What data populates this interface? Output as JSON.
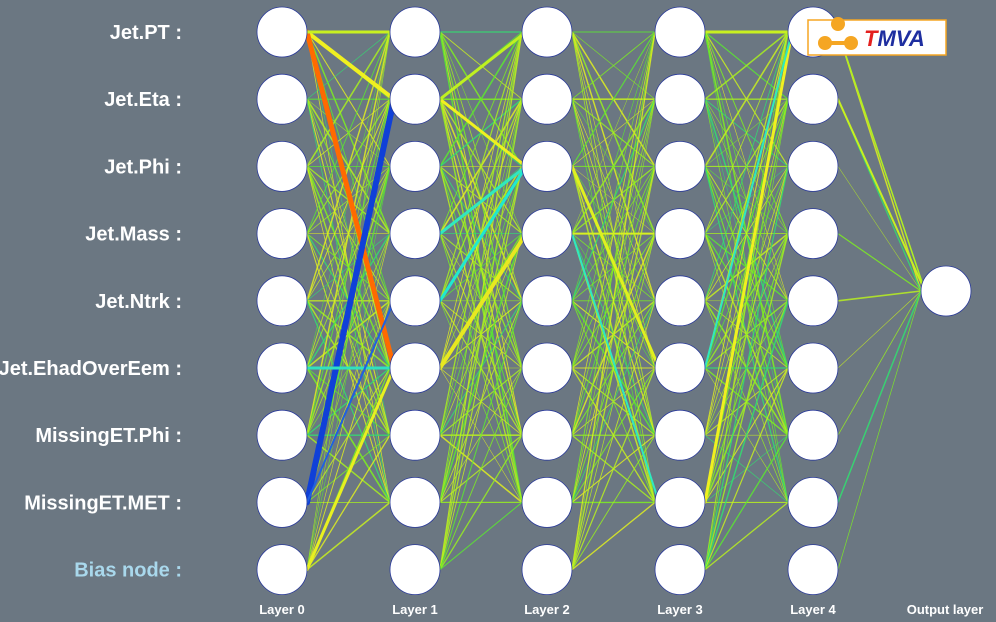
{
  "inputs": [
    {
      "label": "Jet.PT :",
      "bias": false
    },
    {
      "label": "Jet.Eta :",
      "bias": false
    },
    {
      "label": "Jet.Phi :",
      "bias": false
    },
    {
      "label": "Jet.Mass :",
      "bias": false
    },
    {
      "label": "Jet.Ntrk :",
      "bias": false
    },
    {
      "label": "Jet.EhadOverEem :",
      "bias": false
    },
    {
      "label": "MissingET.Phi :",
      "bias": false
    },
    {
      "label": "MissingET.MET :",
      "bias": false
    },
    {
      "label": "Bias node :",
      "bias": true
    }
  ],
  "layers": [
    {
      "label": "Layer 0",
      "nodes": 9
    },
    {
      "label": "Layer 1",
      "nodes": 9
    },
    {
      "label": "Layer 2",
      "nodes": 9
    },
    {
      "label": "Layer 3",
      "nodes": 9
    },
    {
      "label": "Layer 4",
      "nodes": 9
    },
    {
      "label": "Output layer",
      "nodes": 1
    }
  ],
  "logo": {
    "t": "T",
    "rest": "MVA",
    "t_color": "#e4201e",
    "rest_color": "#1e2ea0",
    "accent": "#f5a623"
  },
  "highlight_connections": [
    {
      "from": [
        0,
        0
      ],
      "to": [
        1,
        1
      ],
      "color": "#f0f020",
      "weight": 4
    },
    {
      "from": [
        0,
        0
      ],
      "to": [
        1,
        5
      ],
      "color": "#ff6a00",
      "weight": 5
    },
    {
      "from": [
        0,
        7
      ],
      "to": [
        1,
        1
      ],
      "color": "#1040d8",
      "weight": 6
    },
    {
      "from": [
        0,
        5
      ],
      "to": [
        1,
        5
      ],
      "color": "#30e0c0",
      "weight": 3
    },
    {
      "from": [
        0,
        7
      ],
      "to": [
        1,
        4
      ],
      "color": "#2060e0",
      "weight": 2
    },
    {
      "from": [
        0,
        0
      ],
      "to": [
        1,
        0
      ],
      "color": "#c8f020",
      "weight": 3
    },
    {
      "from": [
        0,
        8
      ],
      "to": [
        1,
        5
      ],
      "color": "#e8f020",
      "weight": 3
    },
    {
      "from": [
        1,
        5
      ],
      "to": [
        2,
        3
      ],
      "color": "#e8e820",
      "weight": 4
    },
    {
      "from": [
        1,
        1
      ],
      "to": [
        2,
        2
      ],
      "color": "#f0f020",
      "weight": 3
    },
    {
      "from": [
        1,
        4
      ],
      "to": [
        2,
        2
      ],
      "color": "#20e8d0",
      "weight": 3
    },
    {
      "from": [
        1,
        3
      ],
      "to": [
        2,
        2
      ],
      "color": "#30e8c0",
      "weight": 3
    },
    {
      "from": [
        1,
        1
      ],
      "to": [
        2,
        0
      ],
      "color": "#c0f020",
      "weight": 3
    },
    {
      "from": [
        2,
        2
      ],
      "to": [
        3,
        5
      ],
      "color": "#e0f020",
      "weight": 3
    },
    {
      "from": [
        2,
        3
      ],
      "to": [
        3,
        7
      ],
      "color": "#30e8c0",
      "weight": 2
    },
    {
      "from": [
        2,
        3
      ],
      "to": [
        3,
        3
      ],
      "color": "#d8f020",
      "weight": 2
    },
    {
      "from": [
        3,
        7
      ],
      "to": [
        4,
        0
      ],
      "color": "#f0f020",
      "weight": 3
    },
    {
      "from": [
        3,
        5
      ],
      "to": [
        4,
        0
      ],
      "color": "#30e8c0",
      "weight": 2
    },
    {
      "from": [
        3,
        0
      ],
      "to": [
        4,
        0
      ],
      "color": "#c8f020",
      "weight": 3
    },
    {
      "from": [
        4,
        1
      ],
      "to": [
        5,
        0
      ],
      "color": "#c8f020",
      "weight": 2
    },
    {
      "from": [
        4,
        0
      ],
      "to": [
        5,
        0
      ],
      "color": "#b0f020",
      "weight": 1.5
    }
  ]
}
